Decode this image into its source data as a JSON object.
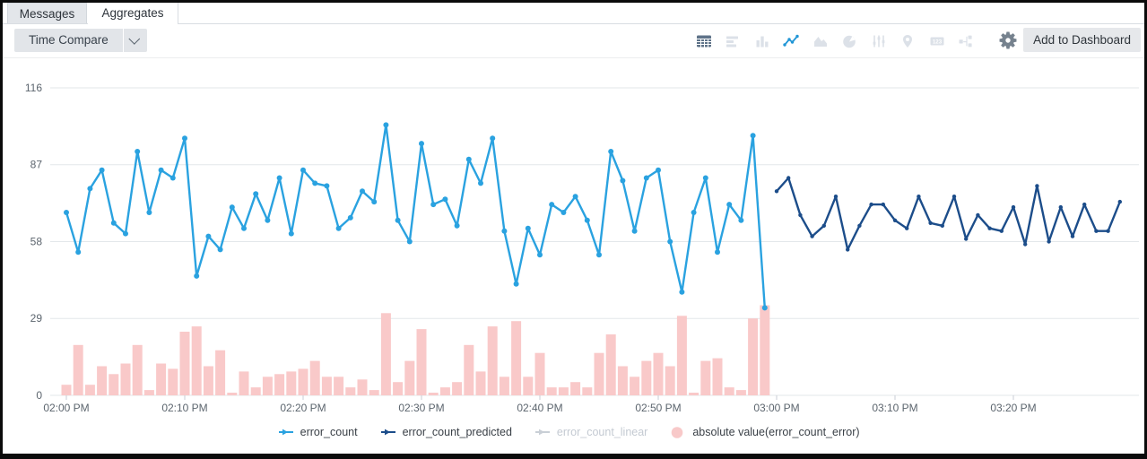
{
  "tabs": [
    {
      "label": "Messages",
      "active": false
    },
    {
      "label": "Aggregates",
      "active": true
    }
  ],
  "toolbar": {
    "time_compare": {
      "label": "Time Compare",
      "caret": "chevron-down"
    },
    "add_to_dashboard_label": "Add to Dashboard",
    "icons": [
      "table",
      "horizontal-bars",
      "column-chart",
      "line-chart",
      "area-chart",
      "pie-chart",
      "sliders",
      "map-pin",
      "single-value",
      "box-plot",
      "settings-gear"
    ],
    "active_icon": "line-chart",
    "colors": {
      "icon_inactive": "#dce1e8",
      "icon_table": "#5f7389",
      "icon_active": "#2196d6",
      "icon_gear": "#76828e"
    }
  },
  "chart_data": {
    "type": "line+bar combo",
    "ylim": [
      0,
      116
    ],
    "y_ticks": [
      0,
      29,
      58,
      87,
      116
    ],
    "x_ticks": [
      {
        "minute": 0,
        "label": "02:00 PM"
      },
      {
        "minute": 10,
        "label": "02:10 PM"
      },
      {
        "minute": 20,
        "label": "02:20 PM"
      },
      {
        "minute": 30,
        "label": "02:30 PM"
      },
      {
        "minute": 40,
        "label": "02:40 PM"
      },
      {
        "minute": 50,
        "label": "02:50 PM"
      },
      {
        "minute": 60,
        "label": "03:00 PM"
      },
      {
        "minute": 70,
        "label": "03:10 PM"
      },
      {
        "minute": 80,
        "label": "03:20 PM"
      }
    ],
    "series": [
      {
        "name": "absolute value(error_count_error)",
        "type": "bar",
        "color": "#f9c9c9",
        "start_minute": 0,
        "values": [
          4,
          19,
          4,
          11,
          8,
          12,
          19,
          2,
          12,
          10,
          24,
          26,
          11,
          17,
          1,
          9,
          3,
          7,
          8,
          9,
          10,
          13,
          7,
          7,
          3,
          6,
          2,
          31,
          5,
          13,
          25,
          1,
          3,
          5,
          19,
          9,
          26,
          7,
          28,
          7,
          16,
          3,
          3,
          5,
          3,
          16,
          23,
          11,
          7,
          13,
          16,
          11,
          30,
          1,
          13,
          14,
          3,
          2,
          29,
          34
        ]
      },
      {
        "name": "error_count",
        "type": "line",
        "color": "#2aa2e0",
        "marker_r": 3,
        "start_minute": 0,
        "values": [
          69,
          54,
          78,
          85,
          65,
          61,
          92,
          69,
          85,
          82,
          97,
          45,
          60,
          55,
          71,
          63,
          76,
          66,
          82,
          61,
          85,
          80,
          79,
          63,
          67,
          77,
          73,
          102,
          66,
          58,
          95,
          72,
          74,
          64,
          89,
          80,
          97,
          62,
          42,
          63,
          53,
          72,
          69,
          75,
          66,
          53,
          92,
          81,
          62,
          82,
          85,
          58,
          39,
          69,
          82,
          54,
          72,
          66,
          98,
          33
        ]
      },
      {
        "name": "error_count_predicted",
        "type": "line",
        "color": "#1c4d8a",
        "marker_r": 2.2,
        "start_minute": 60,
        "values": [
          77,
          82,
          68,
          60,
          64,
          75,
          55,
          64,
          72,
          72,
          66,
          63,
          75,
          65,
          64,
          75,
          59,
          68,
          63,
          62,
          71,
          57,
          79,
          58,
          71,
          60,
          72,
          62,
          62,
          73
        ]
      },
      {
        "name": "error_count_linear",
        "type": "line",
        "color": "#c9cfd6",
        "marker_r": 2,
        "start_minute": 0,
        "disabled": true,
        "values": []
      }
    ],
    "grid": true,
    "legend_position": "bottom-center"
  },
  "legend": {
    "items": [
      {
        "label": "error_count",
        "marker": "line-arrow",
        "color": "#2aa2e0",
        "disabled": false
      },
      {
        "label": "error_count_predicted",
        "marker": "line-arrow",
        "color": "#1c4d8a",
        "disabled": false
      },
      {
        "label": "error_count_linear",
        "marker": "line-arrow",
        "color": "#c9cfd6",
        "disabled": true
      },
      {
        "label": "absolute value(error_count_error)",
        "marker": "circle",
        "color": "#f8c9c9",
        "disabled": false,
        "wrap_width": 196
      }
    ]
  }
}
